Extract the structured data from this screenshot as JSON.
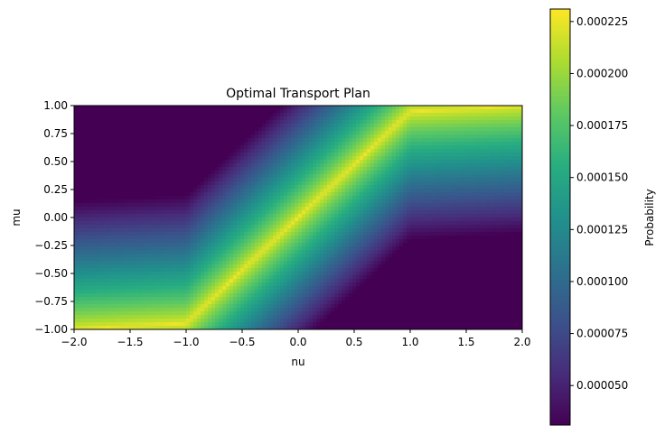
{
  "chart_data": {
    "type": "heatmap",
    "title": "Optimal Transport Plan",
    "xlabel": "nu",
    "ylabel": "mu",
    "xlim": [
      -2.0,
      2.0
    ],
    "ylim": [
      -1.0,
      1.0
    ],
    "x_ticks": [
      "−2.0",
      "−1.5",
      "−1.0",
      "−0.5",
      "0.0",
      "0.5",
      "1.0",
      "1.5",
      "2.0"
    ],
    "y_ticks": [
      "−1.00",
      "−0.75",
      "−0.50",
      "−0.25",
      "0.00",
      "0.25",
      "0.50",
      "0.75",
      "1.00"
    ],
    "colormap": "viridis",
    "colorbar": {
      "label": "Probability",
      "range": [
        3.1e-05,
        0.000231
      ],
      "ticks": [
        "0.000050",
        "0.000075",
        "0.000100",
        "0.000125",
        "0.000150",
        "0.000175",
        "0.000200",
        "0.000225"
      ],
      "tick_values": [
        5e-05,
        7.5e-05,
        0.0001,
        0.000125,
        0.00015,
        0.000175,
        0.0002,
        0.000225
      ]
    },
    "ridge": {
      "from": {
        "nu": -1.0,
        "mu": -1.0
      },
      "to": {
        "nu": 1.0,
        "mu": 1.0
      }
    },
    "grid": false
  }
}
